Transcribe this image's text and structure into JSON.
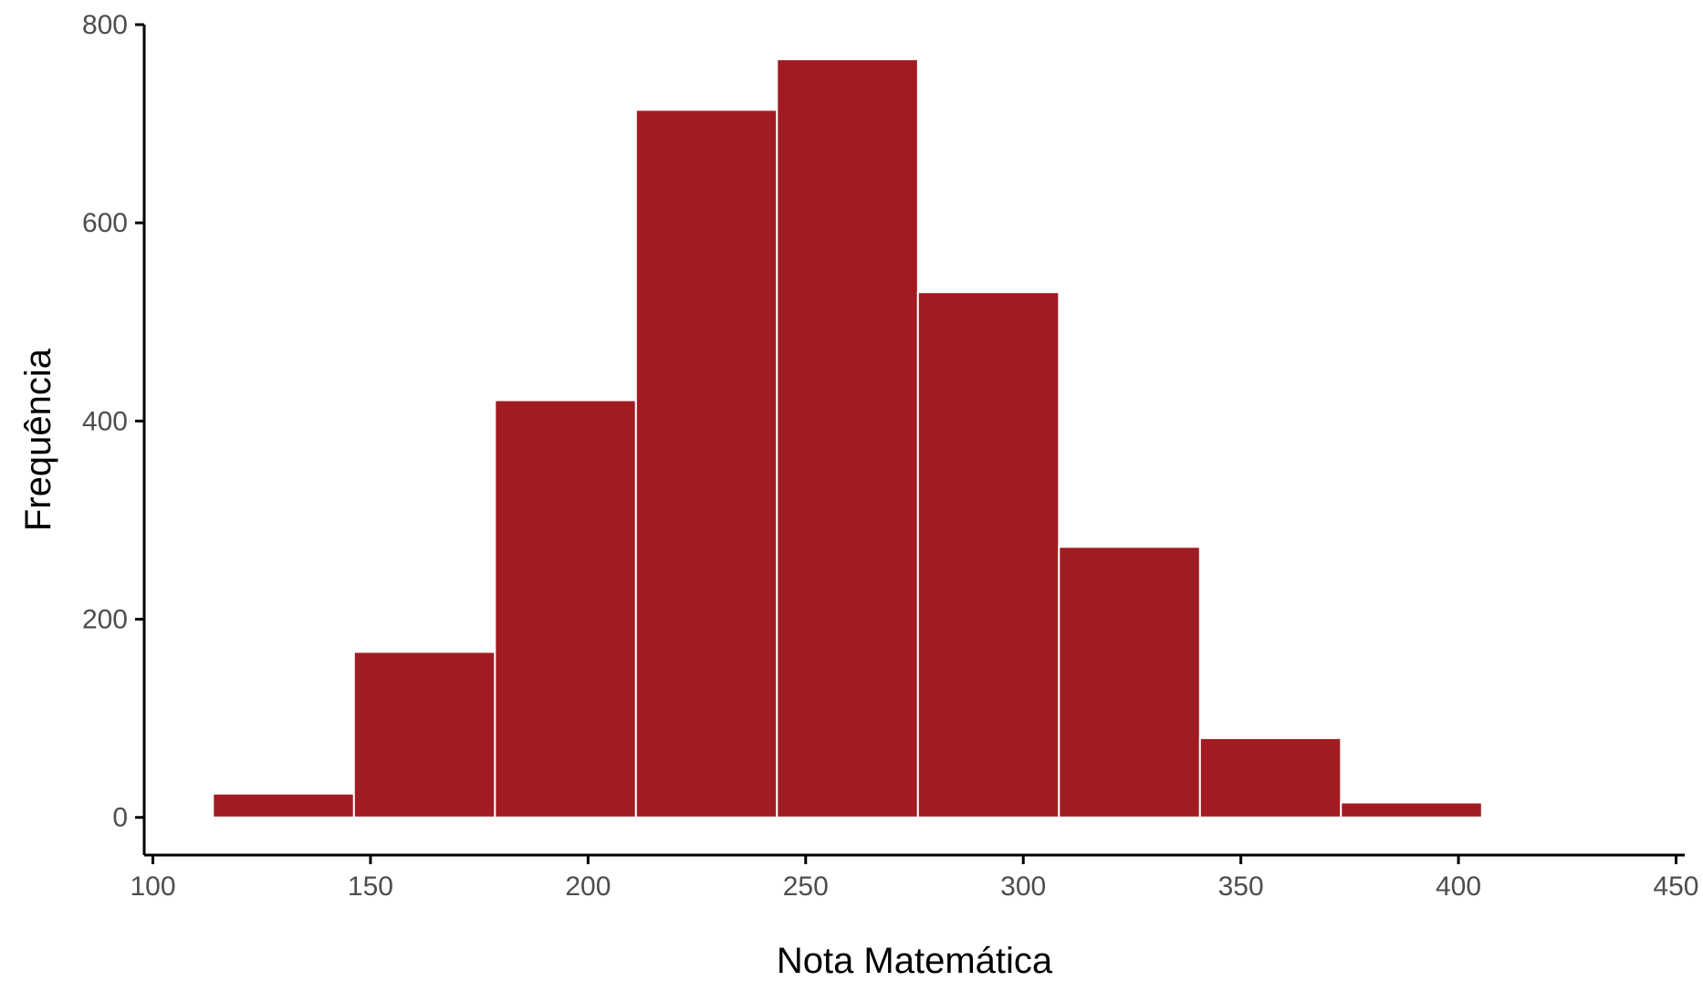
{
  "chart_data": {
    "type": "bar",
    "bins": [
      {
        "x0": 113.8,
        "x1": 146.2,
        "count": 24
      },
      {
        "x0": 146.2,
        "x1": 178.6,
        "count": 167
      },
      {
        "x0": 178.6,
        "x1": 211.0,
        "count": 421
      },
      {
        "x0": 211.0,
        "x1": 243.4,
        "count": 714
      },
      {
        "x0": 243.4,
        "x1": 275.8,
        "count": 765
      },
      {
        "x0": 275.8,
        "x1": 308.2,
        "count": 530
      },
      {
        "x0": 308.2,
        "x1": 340.6,
        "count": 273
      },
      {
        "x0": 340.6,
        "x1": 373.0,
        "count": 80
      },
      {
        "x0": 373.0,
        "x1": 405.4,
        "count": 15
      }
    ],
    "xlabel": "Nota Matemática",
    "ylabel": "Frequência",
    "xlim": [
      98,
      452
    ],
    "ylim": [
      -38,
      800
    ],
    "xticks": [
      100,
      150,
      200,
      250,
      300,
      350,
      400,
      450
    ],
    "yticks": [
      0,
      200,
      400,
      600,
      800
    ],
    "xtick_labels": [
      "100",
      "150",
      "200",
      "250",
      "300",
      "350",
      "400",
      "450"
    ],
    "ytick_labels": [
      "0",
      "200",
      "400",
      "600",
      "800"
    ],
    "bar_color": "#a01c22",
    "bar_edge_color": "#ffffff",
    "grid": false,
    "legend": "none"
  }
}
